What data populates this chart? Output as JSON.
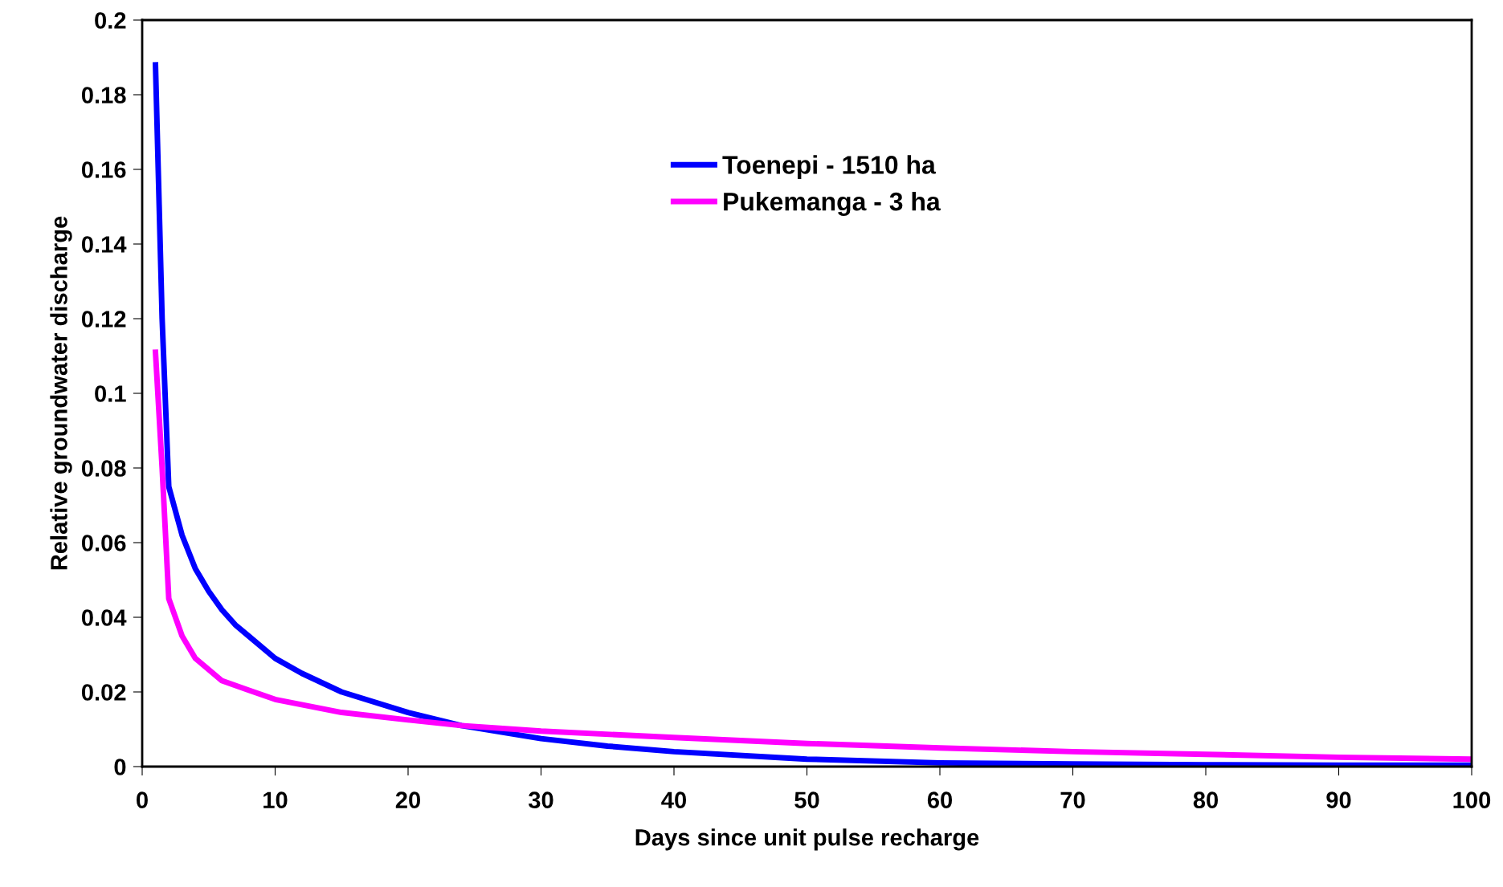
{
  "chart_data": {
    "type": "line",
    "xlabel": "Days since unit pulse recharge",
    "ylabel": "Relative groundwater discharge",
    "xlim": [
      0,
      100
    ],
    "xticks": [
      0,
      10,
      20,
      30,
      40,
      50,
      60,
      70,
      80,
      90,
      100
    ],
    "ylim": [
      0,
      0.2
    ],
    "yticks": [
      0,
      0.02,
      0.04,
      0.06,
      0.08,
      0.1,
      0.12,
      0.14,
      0.16,
      0.18,
      0.2
    ],
    "grid": false,
    "legend": "top",
    "marker": "none",
    "line_style": "solid",
    "series": [
      {
        "name": "Toenepi - 1510 ha",
        "color": "#0000ff",
        "x": [
          1,
          1.5,
          2,
          3,
          4,
          5,
          6,
          7,
          8,
          10,
          12,
          15,
          20,
          24,
          30,
          35,
          40,
          50,
          60,
          70,
          80,
          90,
          100
        ],
        "values": [
          0.188,
          0.12,
          0.075,
          0.062,
          0.053,
          0.047,
          0.042,
          0.038,
          0.035,
          0.029,
          0.025,
          0.02,
          0.0145,
          0.011,
          0.0075,
          0.0055,
          0.004,
          0.002,
          0.001,
          0.0007,
          0.0005,
          0.0004,
          0.0004
        ]
      },
      {
        "name": "Pukemanga - 3 ha",
        "color": "#ff00ff",
        "x": [
          1,
          1.5,
          2,
          3,
          4,
          5,
          6,
          8,
          10,
          15,
          20,
          24,
          30,
          40,
          50,
          60,
          70,
          80,
          90,
          100
        ],
        "values": [
          0.111,
          0.08,
          0.045,
          0.035,
          0.029,
          0.026,
          0.023,
          0.0205,
          0.018,
          0.0145,
          0.0125,
          0.011,
          0.0095,
          0.0078,
          0.0062,
          0.005,
          0.004,
          0.0033,
          0.0025,
          0.002
        ]
      }
    ]
  }
}
